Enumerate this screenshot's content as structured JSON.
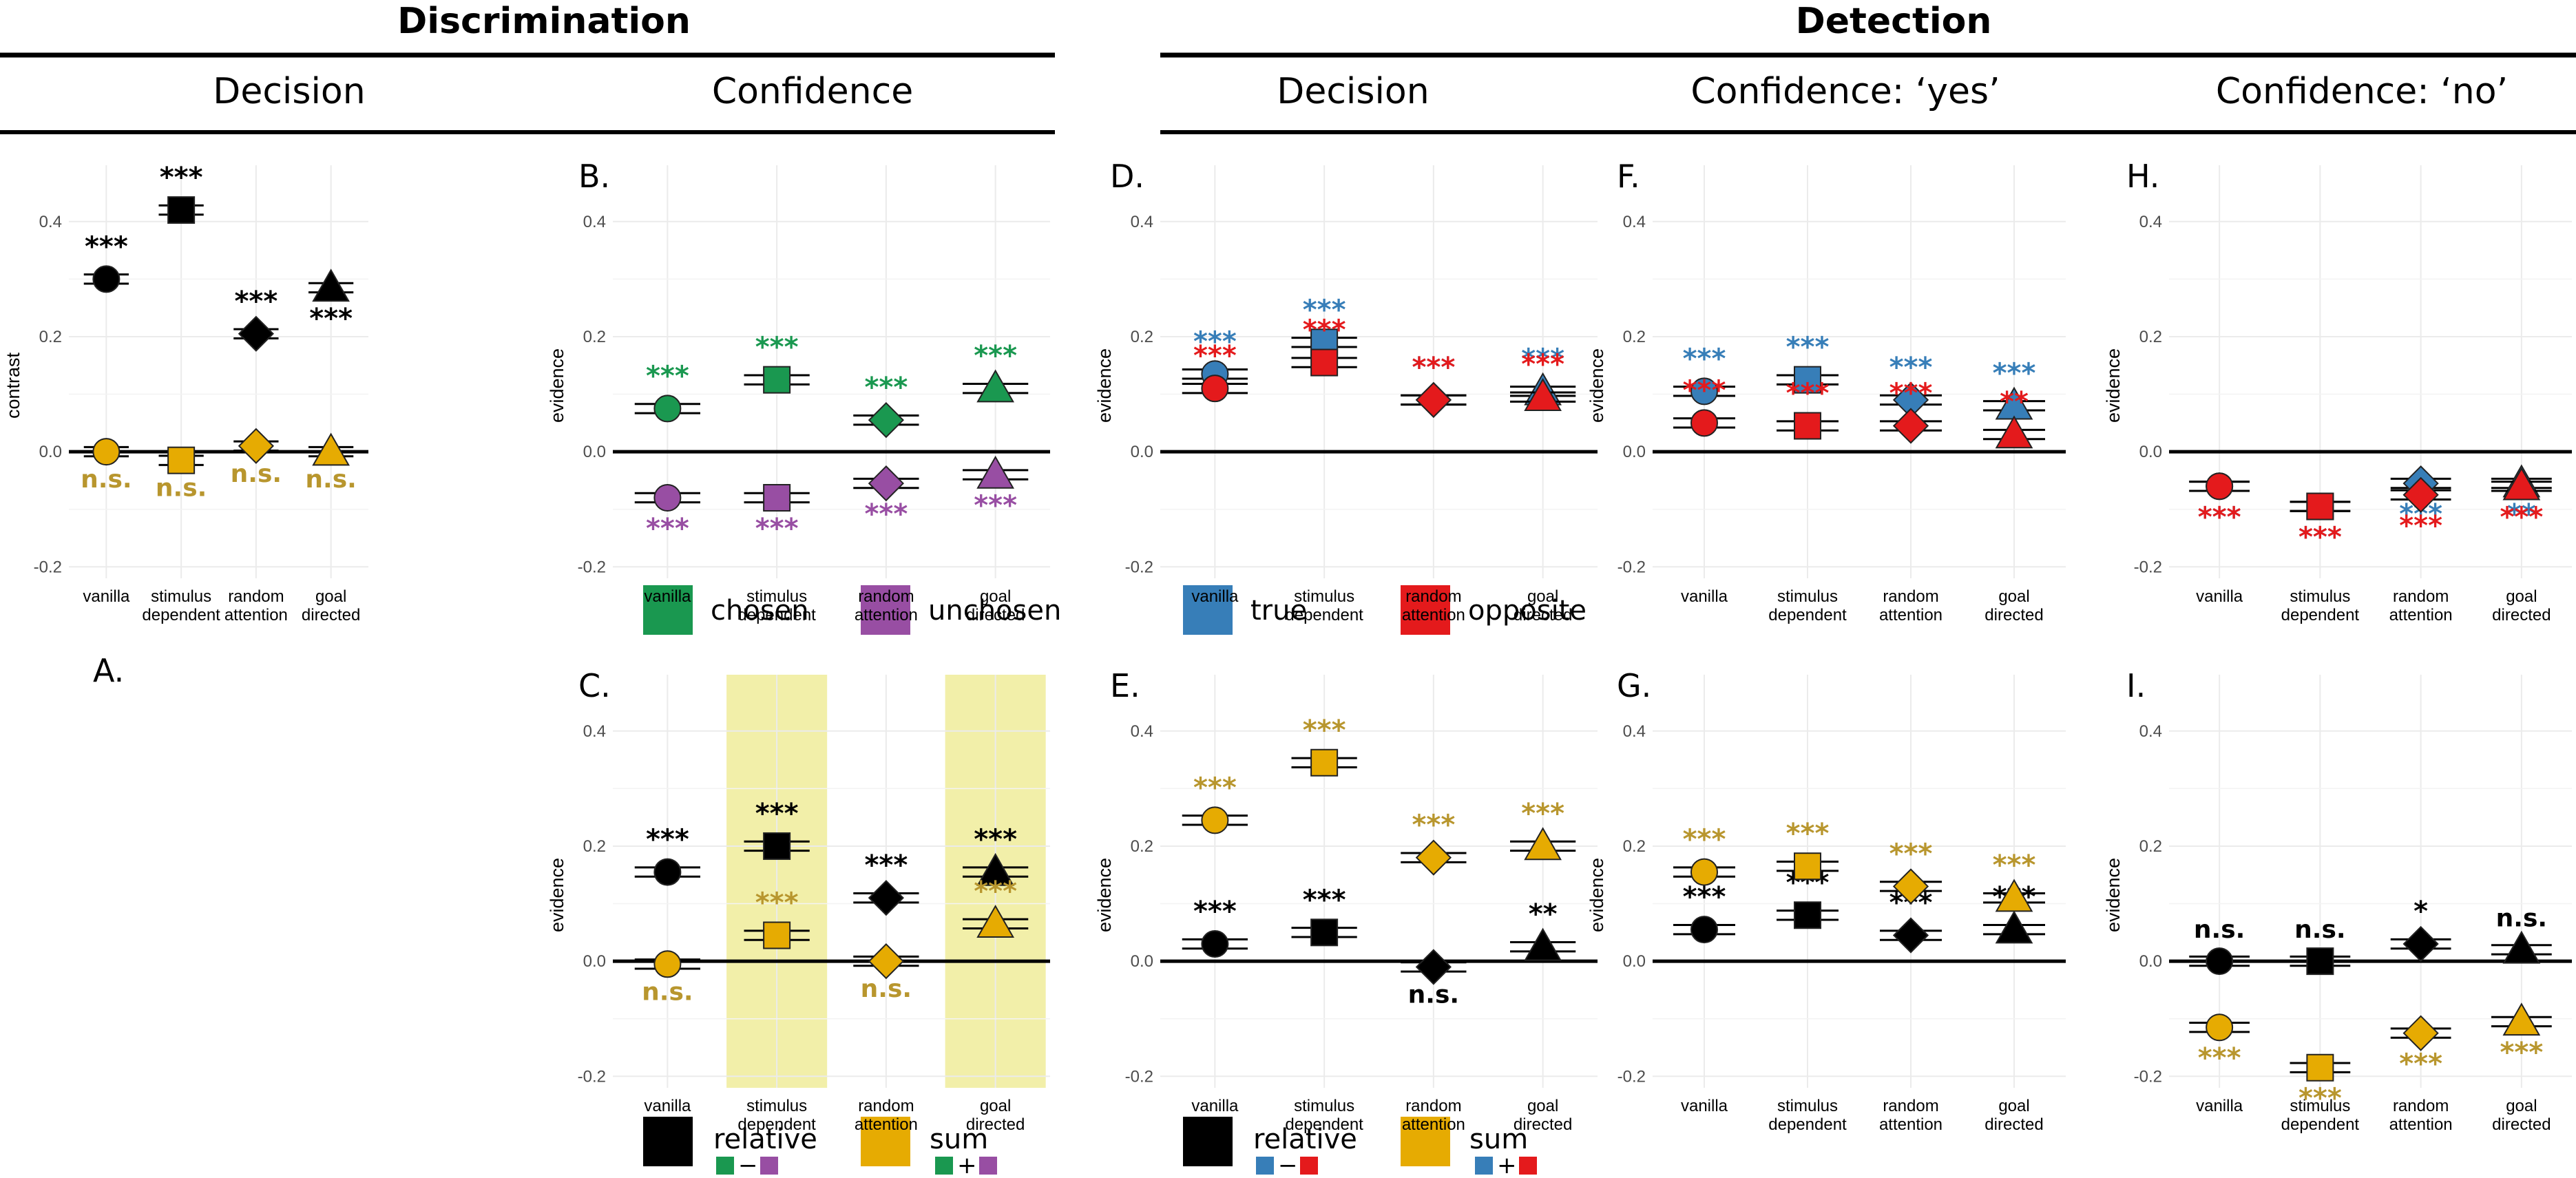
{
  "figure": {
    "headers": {
      "discrimination": "Discrimination",
      "detection": "Detection",
      "discrimination_decision": "Decision",
      "discrimination_confidence": "Confidence",
      "detection_decision": "Decision",
      "detection_conf_yes": "Confidence: ‘yes’",
      "detection_conf_no": "Confidence: ‘no’"
    },
    "legends": {
      "chosen": "chosen",
      "unchosen": "unchosen",
      "true": "true",
      "opposite": "opposite",
      "relative": "relative",
      "sum": "sum",
      "op_minus": "−",
      "op_plus": "+"
    }
  },
  "colors": {
    "chosen": "#1a9850",
    "unchosen": "#984ea3",
    "true": "#377eb8",
    "opposite": "#e41a1c",
    "relative": "#000000",
    "sum": "#e6ab02",
    "sum_text": "#b8962e",
    "highlight": "#f2efa9"
  },
  "categories": [
    "vanilla",
    "stimulus dependent",
    "random attention",
    "goal directed"
  ],
  "shapes": [
    "circle",
    "square",
    "diamond",
    "triangle"
  ],
  "y_ticks": [
    "0.4",
    "0.2",
    "0.0",
    "-0.2"
  ],
  "chart_data": [
    {
      "id": "A",
      "label": "A.",
      "type": "scatter",
      "ylabel": "contrast",
      "ylim": [
        -0.22,
        0.45
      ],
      "highlight": [],
      "categories": [
        "vanilla",
        "stimulus dependent",
        "random attention",
        "goal directed"
      ],
      "series": [
        {
          "key": "relative",
          "values": [
            0.3,
            0.42,
            0.205,
            0.285
          ],
          "err": [
            0.008,
            0.008,
            0.008,
            0.008
          ],
          "sig": [
            "***",
            "***",
            "***",
            "***"
          ],
          "sig_pos": [
            "above",
            "above",
            "above",
            "below"
          ]
        },
        {
          "key": "sum",
          "values": [
            0.0,
            -0.015,
            0.01,
            0.0
          ],
          "err": [
            0.008,
            0.008,
            0.008,
            0.008
          ],
          "sig": [
            "n.s.",
            "n.s.",
            "n.s.",
            "n.s."
          ],
          "sig_pos": [
            "below",
            "below",
            "below",
            "below"
          ]
        }
      ]
    },
    {
      "id": "B",
      "label": "B.",
      "type": "scatter",
      "ylabel": "evidence",
      "ylim": [
        -0.22,
        0.45
      ],
      "highlight": [],
      "categories": [
        "vanilla",
        "stimulus dependent",
        "random attention",
        "goal directed"
      ],
      "series": [
        {
          "key": "chosen",
          "values": [
            0.075,
            0.125,
            0.055,
            0.11
          ],
          "err": [
            0.008,
            0.008,
            0.008,
            0.008
          ],
          "sig": [
            "***",
            "***",
            "***",
            "***"
          ],
          "sig_pos": [
            "above",
            "above",
            "above",
            "above"
          ]
        },
        {
          "key": "unchosen",
          "values": [
            -0.08,
            -0.08,
            -0.055,
            -0.04
          ],
          "err": [
            0.008,
            0.008,
            0.008,
            0.008
          ],
          "sig": [
            "***",
            "***",
            "***",
            "***"
          ],
          "sig_pos": [
            "below",
            "below",
            "below",
            "below"
          ]
        }
      ]
    },
    {
      "id": "C",
      "label": "C.",
      "type": "scatter",
      "ylabel": "evidence",
      "ylim": [
        -0.22,
        0.45
      ],
      "highlight": [
        1,
        3
      ],
      "categories": [
        "vanilla",
        "stimulus dependent",
        "random attention",
        "goal directed"
      ],
      "series": [
        {
          "key": "relative",
          "values": [
            0.155,
            0.2,
            0.11,
            0.155
          ],
          "err": [
            0.008,
            0.008,
            0.008,
            0.008
          ],
          "sig": [
            "***",
            "***",
            "***",
            "***"
          ],
          "sig_pos": [
            "above",
            "above",
            "above",
            "above"
          ]
        },
        {
          "key": "sum",
          "values": [
            -0.005,
            0.045,
            0.0,
            0.065
          ],
          "err": [
            0.008,
            0.008,
            0.008,
            0.008
          ],
          "sig": [
            "n.s.",
            "***",
            "n.s.",
            "***"
          ],
          "sig_pos": [
            "below",
            "above",
            "below",
            "above"
          ]
        }
      ]
    },
    {
      "id": "D",
      "label": "D.",
      "type": "scatter",
      "ylabel": "evidence",
      "ylim": [
        -0.22,
        0.45
      ],
      "highlight": [],
      "categories": [
        "vanilla",
        "stimulus dependent",
        "random attention",
        "goal directed"
      ],
      "series": [
        {
          "key": "true",
          "values": [
            0.135,
            0.19,
            0.09,
            0.105
          ],
          "err": [
            0.008,
            0.008,
            0.008,
            0.008
          ],
          "sig": [
            "***",
            "***",
            "***",
            "***"
          ],
          "sig_pos": [
            "above",
            "above",
            "above",
            "above"
          ]
        },
        {
          "key": "opposite",
          "values": [
            0.11,
            0.155,
            0.09,
            0.095
          ],
          "err": [
            0.008,
            0.008,
            0.008,
            0.008
          ],
          "sig": [
            "***",
            "***",
            "***",
            "***"
          ],
          "sig_pos": [
            "above",
            "above",
            "above",
            "above"
          ]
        }
      ]
    },
    {
      "id": "E",
      "label": "E.",
      "type": "scatter",
      "ylabel": "evidence",
      "ylim": [
        -0.22,
        0.45
      ],
      "highlight": [],
      "categories": [
        "vanilla",
        "stimulus dependent",
        "random attention",
        "goal directed"
      ],
      "series": [
        {
          "key": "relative",
          "values": [
            0.03,
            0.05,
            -0.01,
            0.025
          ],
          "err": [
            0.008,
            0.008,
            0.008,
            0.008
          ],
          "sig": [
            "***",
            "***",
            "n.s.",
            "**"
          ],
          "sig_pos": [
            "above",
            "above",
            "below",
            "above"
          ]
        },
        {
          "key": "sum",
          "values": [
            0.245,
            0.345,
            0.18,
            0.2
          ],
          "err": [
            0.008,
            0.008,
            0.008,
            0.008
          ],
          "sig": [
            "***",
            "***",
            "***",
            "***"
          ],
          "sig_pos": [
            "above",
            "above",
            "above",
            "above"
          ]
        }
      ]
    },
    {
      "id": "F",
      "label": "F.",
      "type": "scatter",
      "ylabel": "evidence",
      "ylim": [
        -0.22,
        0.45
      ],
      "highlight": [],
      "categories": [
        "vanilla",
        "stimulus dependent",
        "random attention",
        "goal directed"
      ],
      "series": [
        {
          "key": "true",
          "values": [
            0.105,
            0.125,
            0.09,
            0.08
          ],
          "err": [
            0.008,
            0.008,
            0.008,
            0.008
          ],
          "sig": [
            "***",
            "***",
            "***",
            "***"
          ],
          "sig_pos": [
            "above",
            "above",
            "above",
            "above"
          ]
        },
        {
          "key": "opposite",
          "values": [
            0.05,
            0.045,
            0.045,
            0.03
          ],
          "err": [
            0.008,
            0.008,
            0.008,
            0.008
          ],
          "sig": [
            "***",
            "***",
            "***",
            "**"
          ],
          "sig_pos": [
            "above",
            "above",
            "above",
            "above"
          ]
        }
      ]
    },
    {
      "id": "G",
      "label": "G.",
      "type": "scatter",
      "ylabel": "evidence",
      "ylim": [
        -0.22,
        0.45
      ],
      "highlight": [],
      "categories": [
        "vanilla",
        "stimulus dependent",
        "random attention",
        "goal directed"
      ],
      "series": [
        {
          "key": "relative",
          "values": [
            0.055,
            0.08,
            0.045,
            0.055
          ],
          "err": [
            0.008,
            0.008,
            0.008,
            0.008
          ],
          "sig": [
            "***",
            "***",
            "***",
            "***"
          ],
          "sig_pos": [
            "above",
            "above",
            "above",
            "above"
          ]
        },
        {
          "key": "sum",
          "values": [
            0.155,
            0.165,
            0.13,
            0.11
          ],
          "err": [
            0.008,
            0.008,
            0.008,
            0.008
          ],
          "sig": [
            "***",
            "***",
            "***",
            "***"
          ],
          "sig_pos": [
            "above",
            "above",
            "above",
            "above"
          ]
        }
      ]
    },
    {
      "id": "H",
      "label": "H.",
      "type": "scatter",
      "ylabel": "evidence",
      "ylim": [
        -0.22,
        0.45
      ],
      "highlight": [],
      "categories": [
        "vanilla",
        "stimulus dependent",
        "random attention",
        "goal directed"
      ],
      "series": [
        {
          "key": "true",
          "values": [
            -0.06,
            -0.095,
            -0.055,
            -0.055
          ],
          "err": [
            0.008,
            0.008,
            0.008,
            0.008
          ],
          "sig": [
            "***",
            "***",
            "***",
            "**"
          ],
          "sig_pos": [
            "below",
            "below",
            "below",
            "below"
          ]
        },
        {
          "key": "opposite",
          "values": [
            -0.06,
            -0.095,
            -0.075,
            -0.06
          ],
          "err": [
            0.008,
            0.008,
            0.008,
            0.008
          ],
          "sig": [
            "***",
            "***",
            "***",
            "***"
          ],
          "sig_pos": [
            "below",
            "below",
            "below",
            "below"
          ]
        }
      ]
    },
    {
      "id": "I",
      "label": "I.",
      "type": "scatter",
      "ylabel": "evidence",
      "ylim": [
        -0.22,
        0.45
      ],
      "highlight": [],
      "categories": [
        "vanilla",
        "stimulus dependent",
        "random attention",
        "goal directed"
      ],
      "series": [
        {
          "key": "relative",
          "values": [
            0.0,
            0.0,
            0.03,
            0.02
          ],
          "err": [
            0.008,
            0.008,
            0.008,
            0.008
          ],
          "sig": [
            "n.s.",
            "n.s.",
            "*",
            "n.s."
          ],
          "sig_pos": [
            "above",
            "above",
            "above",
            "above"
          ]
        },
        {
          "key": "sum",
          "values": [
            -0.115,
            -0.185,
            -0.125,
            -0.105
          ],
          "err": [
            0.008,
            0.008,
            0.008,
            0.008
          ],
          "sig": [
            "***",
            "***",
            "***",
            "***"
          ],
          "sig_pos": [
            "below",
            "below",
            "below",
            "below"
          ]
        }
      ]
    }
  ]
}
